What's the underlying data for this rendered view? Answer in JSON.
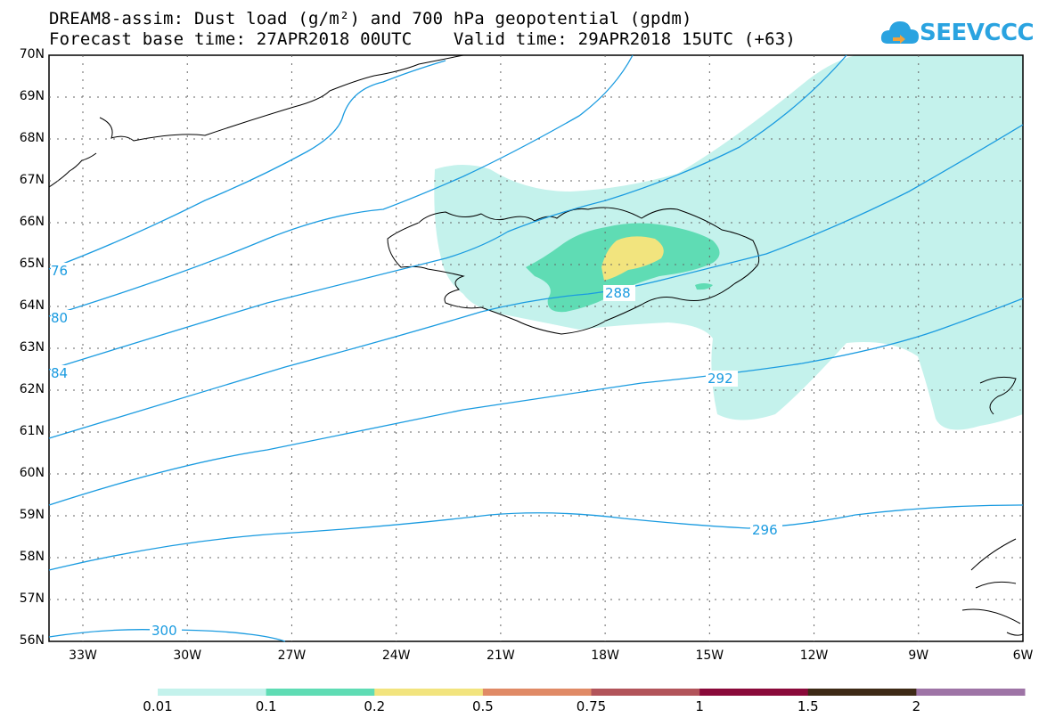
{
  "header": {
    "line1": "DREAM8-assim: Dust load (g/m²) and 700 hPa geopotential (gpdm)",
    "line2": "Forecast base time: 27APR2018 00UTC    Valid time: 29APR2018 15UTC (+63)"
  },
  "logo": {
    "text": "SEEVCCC",
    "icon": "cloud-logo-icon"
  },
  "lat_labels": [
    "70N",
    "69N",
    "68N",
    "67N",
    "66N",
    "65N",
    "64N",
    "63N",
    "62N",
    "61N",
    "60N",
    "59N",
    "58N",
    "57N",
    "56N"
  ],
  "lon_labels": [
    "33W",
    "30W",
    "27W",
    "24W",
    "21W",
    "18W",
    "15W",
    "12W",
    "9W",
    "6W"
  ],
  "contour_labels": {
    "c276": "76",
    "c280": "80",
    "c284": "84",
    "c288": "288",
    "c292": "292",
    "c296": "296",
    "c300": "300"
  },
  "colorbar": {
    "labels": [
      "0.01",
      "0.1",
      "0.2",
      "0.5",
      "0.75",
      "1",
      "1.5",
      "2"
    ],
    "colors": [
      "#c4f2ec",
      "#5fdcb4",
      "#f2e47e",
      "#e08a66",
      "#b2545a",
      "#8a0a3a",
      "#3e2a16",
      "#9e74a6"
    ]
  },
  "colors": {
    "contour": "#1a9be0",
    "dust_low": "#c4f2ec",
    "dust_mid": "#5fdcb4",
    "dust_high": "#f2e47e"
  }
}
